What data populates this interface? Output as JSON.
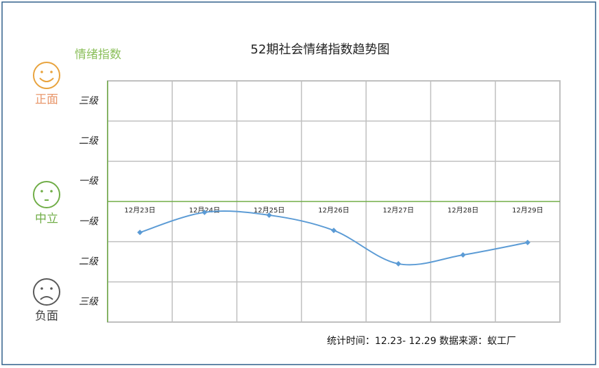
{
  "chart_data": {
    "type": "line",
    "title": "52期社会情绪指数趋势图",
    "y_title": "情绪指数",
    "moods": [
      {
        "label": "正面",
        "color": "#e8a33d",
        "text_color": "#e8966a"
      },
      {
        "label": "中立",
        "color": "#70ad47",
        "text_color": "#70ad47"
      },
      {
        "label": "负面",
        "color": "#595959",
        "text_color": "#404040"
      }
    ],
    "footer": "统计时间：12.23- 12.29  数据来源：蚁工厂",
    "categories": [
      "12月23日",
      "12月24日",
      "12月25日",
      "12月26日",
      "12月27日",
      "12月28日",
      "12月29日"
    ],
    "series": [
      {
        "name": "情绪指数",
        "color": "#5b9bd5",
        "values": [
          -0.77,
          -0.27,
          -0.34,
          -0.72,
          -1.55,
          -1.33,
          -1.02
        ]
      }
    ],
    "ylim": [
      -3,
      3
    ],
    "yticks": [
      {
        "value": 2.5,
        "label": "三级"
      },
      {
        "value": 1.5,
        "label": "二级"
      },
      {
        "value": 0.5,
        "label": "一级"
      },
      {
        "value": -0.5,
        "label": "一级"
      },
      {
        "value": -1.5,
        "label": "二级"
      },
      {
        "value": -2.5,
        "label": "三级"
      }
    ],
    "ygrid": [
      -3,
      -2,
      -1,
      0,
      1,
      2,
      3
    ],
    "grid": true
  }
}
